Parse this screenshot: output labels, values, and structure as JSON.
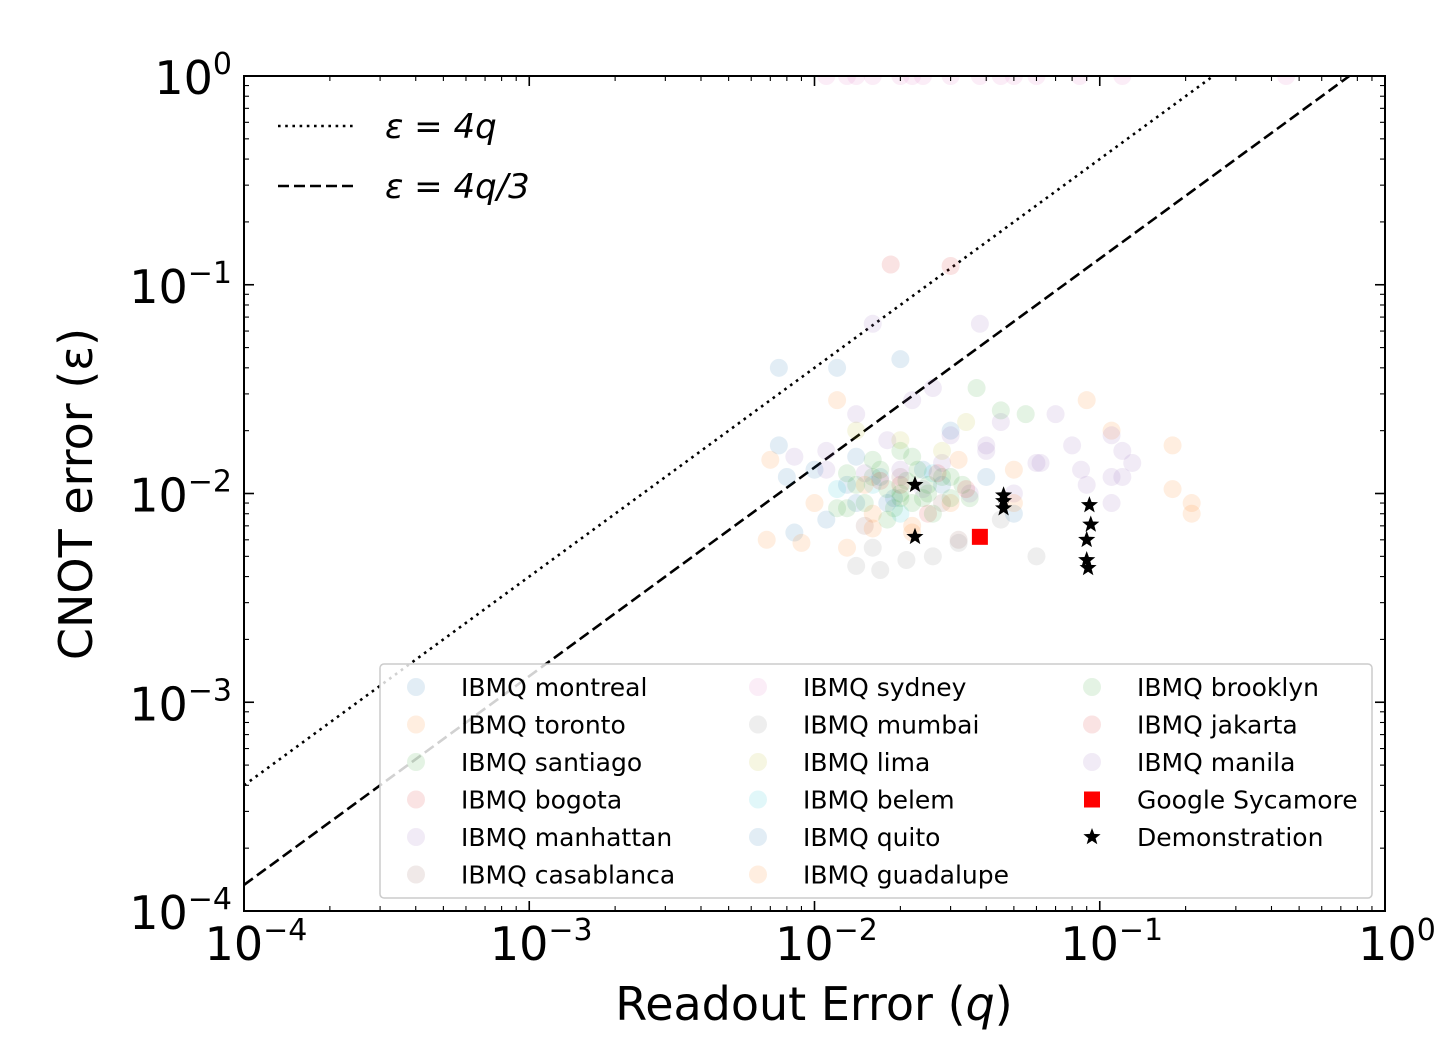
{
  "chart_data": {
    "type": "scatter",
    "xscale": "log",
    "yscale": "log",
    "xlim": [
      0.0001,
      1
    ],
    "ylim": [
      0.0001,
      1
    ],
    "xlabel_text": "Readout Error (",
    "xlabel_var": "q",
    "xlabel_close": ")",
    "ylabel": "CNOT error (ε)",
    "x_ticks": [
      {
        "value": 0.0001,
        "base": "10",
        "exp": "−4"
      },
      {
        "value": 0.001,
        "base": "10",
        "exp": "−3"
      },
      {
        "value": 0.01,
        "base": "10",
        "exp": "−2"
      },
      {
        "value": 0.1,
        "base": "10",
        "exp": "−1"
      },
      {
        "value": 1,
        "base": "10",
        "exp": "0"
      }
    ],
    "y_ticks": [
      {
        "value": 0.0001,
        "base": "10",
        "exp": "−4"
      },
      {
        "value": 0.001,
        "base": "10",
        "exp": "−3"
      },
      {
        "value": 0.01,
        "base": "10",
        "exp": "−2"
      },
      {
        "value": 0.1,
        "base": "10",
        "exp": "−1"
      },
      {
        "value": 1,
        "base": "10",
        "exp": "0"
      }
    ],
    "lines": [
      {
        "label": "ε = 4q",
        "slope": 4,
        "style": "dotted"
      },
      {
        "label": "ε = 4q/3",
        "slope": 1.3333,
        "style": "dashed"
      }
    ],
    "series": [
      {
        "name": "IBMQ montreal",
        "color": "#1f77b4",
        "marker": "circle",
        "points": [
          [
            0.0075,
            0.04
          ],
          [
            0.008,
            0.012
          ],
          [
            0.0085,
            0.0065
          ],
          [
            0.011,
            0.0075
          ],
          [
            0.012,
            0.04
          ],
          [
            0.014,
            0.009
          ],
          [
            0.017,
            0.012
          ],
          [
            0.02,
            0.044
          ],
          [
            0.024,
            0.013
          ],
          [
            0.03,
            0.02
          ],
          [
            0.04,
            0.012
          ],
          [
            0.05,
            0.008
          ],
          [
            0.019,
            0.0095
          ],
          [
            0.013,
            0.011
          ]
        ]
      },
      {
        "name": "IBMQ toronto",
        "color": "#ff7f0e",
        "marker": "circle",
        "points": [
          [
            0.007,
            0.0145
          ],
          [
            0.0068,
            0.006
          ],
          [
            0.009,
            0.0058
          ],
          [
            0.012,
            0.028
          ],
          [
            0.016,
            0.008
          ],
          [
            0.022,
            0.0065
          ],
          [
            0.03,
            0.009
          ],
          [
            0.05,
            0.013
          ],
          [
            0.09,
            0.028
          ],
          [
            0.18,
            0.017
          ],
          [
            0.21,
            0.009
          ],
          [
            0.21,
            0.008
          ],
          [
            0.18,
            0.0105
          ],
          [
            0.11,
            0.02
          ],
          [
            0.013,
            0.0055
          ]
        ]
      },
      {
        "name": "IBMQ santiago",
        "color": "#2ca02c",
        "marker": "circle",
        "points": [
          [
            0.013,
            0.0085
          ],
          [
            0.016,
            0.012
          ],
          [
            0.02,
            0.0095
          ],
          [
            0.022,
            0.015
          ],
          [
            0.025,
            0.01
          ],
          [
            0.018,
            0.0075
          ],
          [
            0.03,
            0.012
          ],
          [
            0.035,
            0.0095
          ]
        ]
      },
      {
        "name": "IBMQ bogota",
        "color": "#d62728",
        "marker": "circle",
        "points": [
          [
            0.0185,
            0.125
          ],
          [
            0.03,
            0.123
          ],
          [
            0.025,
            0.008
          ],
          [
            0.02,
            0.011
          ]
        ]
      },
      {
        "name": "IBMQ manhattan",
        "color": "#9467bd",
        "marker": "circle",
        "points": [
          [
            0.0085,
            0.015
          ],
          [
            0.011,
            0.013
          ],
          [
            0.014,
            0.024
          ],
          [
            0.018,
            0.018
          ],
          [
            0.022,
            0.028
          ],
          [
            0.026,
            0.032
          ],
          [
            0.03,
            0.019
          ],
          [
            0.04,
            0.016
          ],
          [
            0.045,
            0.022
          ],
          [
            0.06,
            0.014
          ],
          [
            0.08,
            0.017
          ],
          [
            0.12,
            0.012
          ],
          [
            0.11,
            0.019
          ],
          [
            0.12,
            0.016
          ],
          [
            0.11,
            0.009
          ],
          [
            0.07,
            0.024
          ],
          [
            0.05,
            0.01
          ],
          [
            0.016,
            0.065
          ],
          [
            0.038,
            0.065
          ],
          [
            0.024,
            0.0105
          ],
          [
            0.015,
            0.0125
          ],
          [
            0.028,
            0.014
          ],
          [
            0.035,
            0.01
          ],
          [
            0.09,
            0.011
          ]
        ]
      },
      {
        "name": "IBMQ casablanca",
        "color": "#8c564b",
        "marker": "circle",
        "points": [
          [
            0.015,
            0.007
          ],
          [
            0.02,
            0.012
          ],
          [
            0.028,
            0.009
          ],
          [
            0.032,
            0.006
          ]
        ]
      },
      {
        "name": "IBMQ sydney",
        "color": "#e377c2",
        "marker": "circle",
        "points": [
          [
            0.011,
            1.0
          ],
          [
            0.013,
            1.0
          ],
          [
            0.016,
            1.0
          ],
          [
            0.02,
            1.0
          ],
          [
            0.024,
            1.0
          ],
          [
            0.03,
            1.0
          ],
          [
            0.038,
            1.0
          ],
          [
            0.045,
            1.0
          ],
          [
            0.06,
            1.0
          ],
          [
            0.085,
            1.0
          ],
          [
            0.12,
            1.0
          ],
          [
            0.45,
            1.0
          ],
          [
            0.014,
            1.0
          ],
          [
            0.022,
            1.0
          ],
          [
            0.05,
            1.0
          ]
        ]
      },
      {
        "name": "IBMQ mumbai",
        "color": "#7f7f7f",
        "marker": "circle",
        "points": [
          [
            0.014,
            0.0045
          ],
          [
            0.017,
            0.0043
          ],
          [
            0.021,
            0.0048
          ],
          [
            0.026,
            0.005
          ],
          [
            0.032,
            0.0058
          ],
          [
            0.045,
            0.0075
          ],
          [
            0.06,
            0.005
          ],
          [
            0.016,
            0.0055
          ]
        ]
      },
      {
        "name": "IBMQ lima",
        "color": "#bcbd22",
        "marker": "circle",
        "points": [
          [
            0.014,
            0.02
          ],
          [
            0.02,
            0.018
          ],
          [
            0.028,
            0.016
          ],
          [
            0.034,
            0.022
          ]
        ]
      },
      {
        "name": "IBMQ belem",
        "color": "#17becf",
        "marker": "circle",
        "points": [
          [
            0.012,
            0.0105
          ],
          [
            0.016,
            0.011
          ],
          [
            0.02,
            0.008
          ],
          [
            0.026,
            0.0125
          ]
        ]
      },
      {
        "name": "IBMQ quito",
        "color": "#1f77b4",
        "marker": "circle",
        "points": [
          [
            0.0075,
            0.017
          ],
          [
            0.01,
            0.013
          ],
          [
            0.014,
            0.015
          ],
          [
            0.018,
            0.009
          ],
          [
            0.028,
            0.011
          ]
        ]
      },
      {
        "name": "IBMQ guadalupe",
        "color": "#ff7f0e",
        "marker": "circle",
        "points": [
          [
            0.01,
            0.009
          ],
          [
            0.015,
            0.011
          ],
          [
            0.022,
            0.007
          ],
          [
            0.032,
            0.0145
          ],
          [
            0.05,
            0.009
          ],
          [
            0.016,
            0.0068
          ]
        ]
      },
      {
        "name": "IBMQ brooklyn",
        "color": "#2ca02c",
        "marker": "circle",
        "points": [
          [
            0.012,
            0.0085
          ],
          [
            0.014,
            0.011
          ],
          [
            0.015,
            0.009
          ],
          [
            0.017,
            0.013
          ],
          [
            0.018,
            0.0105
          ],
          [
            0.019,
            0.0085
          ],
          [
            0.02,
            0.01
          ],
          [
            0.021,
            0.0115
          ],
          [
            0.022,
            0.009
          ],
          [
            0.023,
            0.013
          ],
          [
            0.024,
            0.0095
          ],
          [
            0.025,
            0.011
          ],
          [
            0.026,
            0.008
          ],
          [
            0.028,
            0.012
          ],
          [
            0.03,
            0.0095
          ],
          [
            0.033,
            0.011
          ],
          [
            0.037,
            0.032
          ],
          [
            0.045,
            0.025
          ],
          [
            0.055,
            0.024
          ],
          [
            0.016,
            0.0145
          ],
          [
            0.02,
            0.016
          ],
          [
            0.013,
            0.0125
          ]
        ]
      },
      {
        "name": "IBMQ jakarta",
        "color": "#d62728",
        "marker": "circle",
        "points": [
          [
            0.017,
            0.0115
          ],
          [
            0.027,
            0.0125
          ],
          [
            0.034,
            0.0105
          ]
        ]
      },
      {
        "name": "IBMQ manila",
        "color": "#9467bd",
        "marker": "circle",
        "points": [
          [
            0.011,
            0.016
          ],
          [
            0.02,
            0.013
          ],
          [
            0.04,
            0.017
          ],
          [
            0.062,
            0.014
          ],
          [
            0.086,
            0.013
          ],
          [
            0.13,
            0.014
          ],
          [
            0.11,
            0.012
          ]
        ]
      },
      {
        "name": "Google Sycamore",
        "color": "#ff0000",
        "marker": "square",
        "points": [
          [
            0.038,
            0.0062
          ]
        ]
      },
      {
        "name": "Demonstration",
        "color": "#000000",
        "marker": "star",
        "points": [
          [
            0.0225,
            0.011
          ],
          [
            0.0225,
            0.0062
          ],
          [
            0.046,
            0.0098
          ],
          [
            0.046,
            0.0085
          ],
          [
            0.046,
            0.0092
          ],
          [
            0.092,
            0.0088
          ],
          [
            0.093,
            0.0071
          ],
          [
            0.09,
            0.006
          ],
          [
            0.09,
            0.0048
          ],
          [
            0.091,
            0.0044
          ]
        ]
      }
    ]
  }
}
